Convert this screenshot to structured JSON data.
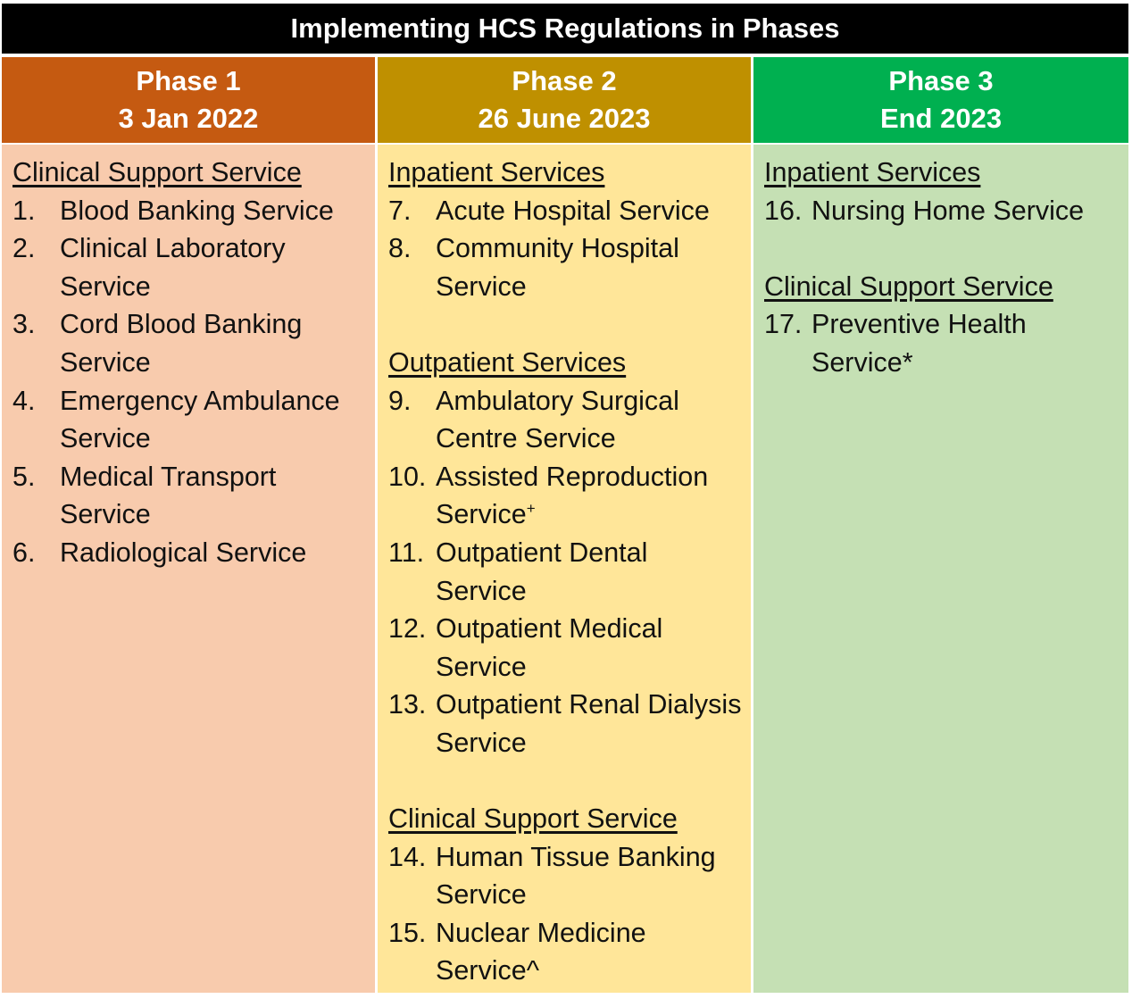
{
  "title": "Implementing HCS Regulations in Phases",
  "colors": {
    "title_bg": "#000000",
    "phase1_head": "#c55a11",
    "phase1_body": "#f8cbad",
    "phase2_head": "#bf9000",
    "phase2_body": "#ffe699",
    "phase3_head": "#00b050",
    "phase3_body": "#c5e0b4",
    "divider": "#ffffff"
  },
  "phases": [
    {
      "name": "Phase 1",
      "date": "3 Jan 2022",
      "sections": [
        {
          "heading": "Clinical Support Service",
          "items": [
            {
              "num": "1.",
              "text": "Blood Banking Service"
            },
            {
              "num": "2.",
              "text": "Clinical Laboratory Service"
            },
            {
              "num": "3.",
              "text": "Cord Blood Banking Service"
            },
            {
              "num": "4.",
              "text": "Emergency Ambulance Service"
            },
            {
              "num": "5.",
              "text": "Medical Transport Service"
            },
            {
              "num": "6.",
              "text": "Radiological Service"
            }
          ]
        }
      ]
    },
    {
      "name": "Phase 2",
      "date": "26 June 2023",
      "sections": [
        {
          "heading": "Inpatient Services",
          "items": [
            {
              "num": "7.",
              "text": "Acute Hospital Service"
            },
            {
              "num": "8.",
              "text": "Community Hospital Service"
            }
          ]
        },
        {
          "heading": "Outpatient Services",
          "items": [
            {
              "num": "9.",
              "text": "Ambulatory Surgical Centre Service"
            },
            {
              "num": "10.",
              "text": "Assisted Reproduction Service",
              "mark": "+"
            },
            {
              "num": "11.",
              "text": "Outpatient Dental Service"
            },
            {
              "num": "12.",
              "text": "Outpatient Medical Service"
            },
            {
              "num": "13.",
              "text": "Outpatient Renal Dialysis Service"
            }
          ]
        },
        {
          "heading": "Clinical Support Service",
          "items": [
            {
              "num": "14.",
              "text": "Human Tissue Banking Service"
            },
            {
              "num": "15.",
              "text": "Nuclear Medicine Service^"
            }
          ]
        }
      ]
    },
    {
      "name": "Phase 3",
      "date": "End 2023",
      "sections": [
        {
          "heading": "Inpatient Services",
          "items": [
            {
              "num": "16.",
              "text": "Nursing Home Service"
            }
          ]
        },
        {
          "heading": "Clinical Support Service",
          "items": [
            {
              "num": "17.",
              "text": "Preventive Health Service*"
            }
          ]
        }
      ]
    }
  ]
}
